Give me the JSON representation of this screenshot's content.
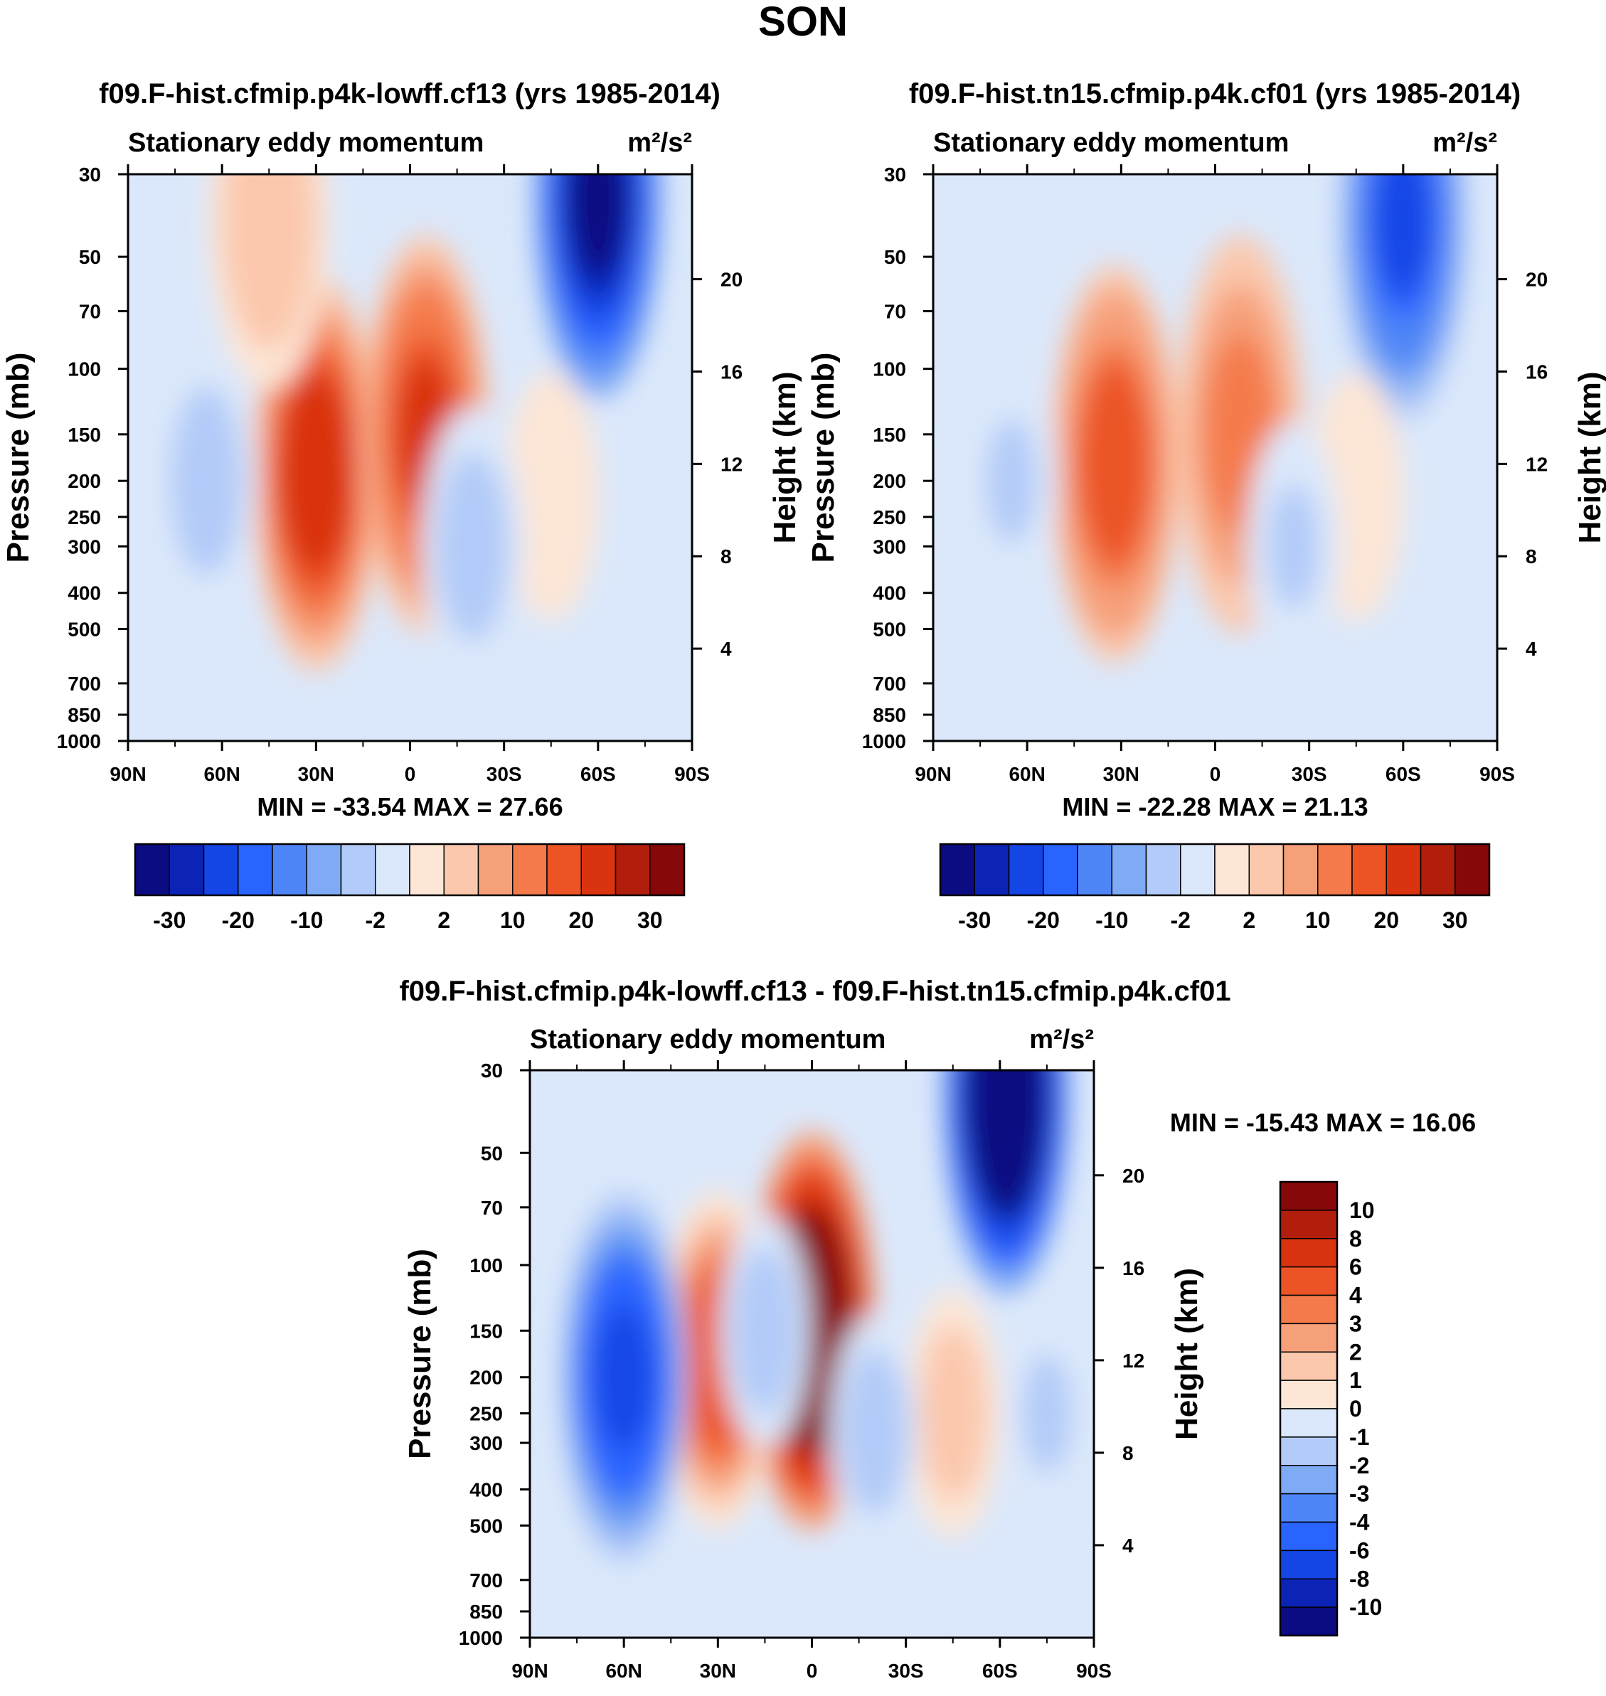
{
  "figure_title": "SON",
  "colors": {
    "abs_scale": [
      "#0b0b82",
      "#0b24b5",
      "#1446e6",
      "#2a64ff",
      "#4f86f7",
      "#7faaf5",
      "#b2cbf8",
      "#dbe8fb",
      "#fde6d6",
      "#fbc8ad",
      "#f6a07a",
      "#f47a4c",
      "#ec5426",
      "#d9330f",
      "#b21e0c",
      "#870808"
    ],
    "diff_scale": [
      "#0b0b82",
      "#0b24b5",
      "#1446e6",
      "#2a64ff",
      "#4f86f7",
      "#7faaf5",
      "#b2cbf8",
      "#dbe8fb",
      "#fde6d6",
      "#fbc8ad",
      "#f6a07a",
      "#f47a4c",
      "#ec5426",
      "#d9330f",
      "#b21e0c",
      "#870808"
    ]
  },
  "chart_data": [
    {
      "type": "heatmap",
      "title": "f09.F-hist.cfmip.p4k-lowff.cf13 (yrs 1985-2014)",
      "subtitle_left": "Stationary eddy momentum",
      "units": "m²/s²",
      "ylabel": "Pressure (mb)",
      "ylabel_right": "Height (km)",
      "x_ticks": [
        "90N",
        "60N",
        "30N",
        "0",
        "30S",
        "60S",
        "90S"
      ],
      "y_ticks": [
        "30",
        "50",
        "70",
        "100",
        "150",
        "200",
        "250",
        "300",
        "400",
        "500",
        "700",
        "850",
        "1000"
      ],
      "y_ticks_right": [
        "20",
        "16",
        "12",
        "8",
        "4"
      ],
      "stats": "MIN = -33.54  MAX =  27.66",
      "colorbar_labels": [
        "-30",
        "-20",
        "-10",
        "-2",
        "2",
        "10",
        "20",
        "30"
      ],
      "features": [
        {
          "lat": 30,
          "p": 190,
          "value": 25
        },
        {
          "lat": -5,
          "p": 150,
          "value": 22
        },
        {
          "lat": -60,
          "p": 35,
          "value": -33
        },
        {
          "lat": -45,
          "p": 220,
          "value": 2
        },
        {
          "lat": 65,
          "p": 200,
          "value": -3
        },
        {
          "lat": -20,
          "p": 300,
          "value": -3
        },
        {
          "lat": 45,
          "p": 40,
          "value": 5
        }
      ]
    },
    {
      "type": "heatmap",
      "title": "f09.F-hist.tn15.cfmip.p4k.cf01 (yrs 1985-2014)",
      "subtitle_left": "Stationary eddy momentum",
      "units": "m²/s²",
      "ylabel": "Pressure (mb)",
      "ylabel_right": "Height (km)",
      "x_ticks": [
        "90N",
        "60N",
        "30N",
        "0",
        "30S",
        "60S",
        "90S"
      ],
      "y_ticks": [
        "30",
        "50",
        "70",
        "100",
        "150",
        "200",
        "250",
        "300",
        "400",
        "500",
        "700",
        "850",
        "1000"
      ],
      "y_ticks_right": [
        "20",
        "16",
        "12",
        "8",
        "4"
      ],
      "stats": "MIN = -22.28  MAX =  21.13",
      "colorbar_labels": [
        "-30",
        "-20",
        "-10",
        "-2",
        "2",
        "10",
        "20",
        "30"
      ],
      "features": [
        {
          "lat": 32,
          "p": 180,
          "value": 20
        },
        {
          "lat": -8,
          "p": 150,
          "value": 15
        },
        {
          "lat": -60,
          "p": 40,
          "value": -20
        },
        {
          "lat": -45,
          "p": 220,
          "value": 2
        },
        {
          "lat": 65,
          "p": 200,
          "value": -2
        },
        {
          "lat": -25,
          "p": 300,
          "value": -2
        }
      ]
    },
    {
      "type": "heatmap",
      "title": "f09.F-hist.cfmip.p4k-lowff.cf13 - f09.F-hist.tn15.cfmip.p4k.cf01",
      "subtitle_left": "Stationary eddy momentum",
      "units": "m²/s²",
      "ylabel": "Pressure (mb)",
      "ylabel_right": "Height (km)",
      "x_ticks": [
        "90N",
        "60N",
        "30N",
        "0",
        "30S",
        "60S",
        "90S"
      ],
      "y_ticks": [
        "30",
        "50",
        "70",
        "100",
        "150",
        "200",
        "250",
        "300",
        "400",
        "500",
        "700",
        "850",
        "1000"
      ],
      "y_ticks_right": [
        "20",
        "16",
        "12",
        "8",
        "4"
      ],
      "stats": "MIN = -15.43  MAX =  16.06",
      "colorbar_labels": [
        "10",
        "8",
        "6",
        "4",
        "3",
        "2",
        "1",
        "0",
        "-1",
        "-2",
        "-3",
        "-4",
        "-6",
        "-8",
        "-10"
      ],
      "features": [
        {
          "lat": 0,
          "p": 150,
          "value": 16
        },
        {
          "lat": 30,
          "p": 180,
          "value": 5
        },
        {
          "lat": 60,
          "p": 200,
          "value": -6
        },
        {
          "lat": -62,
          "p": 35,
          "value": -15
        },
        {
          "lat": -45,
          "p": 250,
          "value": 2
        },
        {
          "lat": -20,
          "p": 280,
          "value": -1.5
        },
        {
          "lat": 15,
          "p": 150,
          "value": -1.5
        },
        {
          "lat": -75,
          "p": 250,
          "value": -1
        }
      ]
    }
  ]
}
